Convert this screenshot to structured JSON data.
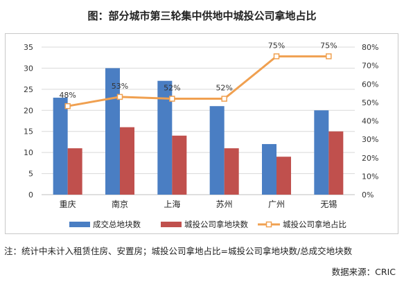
{
  "title": "图：部分城市第三轮集中供地中城投公司拿地占比",
  "note": "注：统计中未计入租赁住房、安置房；城投公司拿地占比=城投公司拿地块数/总成交地块数",
  "source": "数据来源：CRIC",
  "colors": {
    "total": "#4a7ec3",
    "chengtou": "#c0504d",
    "share": "#f0a050",
    "grid": "#d9d9d9"
  },
  "chart_data": {
    "type": "bar",
    "categories": [
      "重庆",
      "南京",
      "上海",
      "苏州",
      "广州",
      "无锡"
    ],
    "series": [
      {
        "name": "成交总地块数",
        "type": "bar",
        "axis": "left",
        "values": [
          23,
          30,
          27,
          21,
          12,
          20
        ]
      },
      {
        "name": "城投公司拿地块数",
        "type": "bar",
        "axis": "left",
        "values": [
          11,
          16,
          14,
          11,
          9,
          15
        ]
      },
      {
        "name": "城投公司拿地占比",
        "type": "line",
        "axis": "right",
        "values": [
          0.48,
          0.53,
          0.52,
          0.52,
          0.75,
          0.75
        ],
        "data_labels": [
          "48%",
          "53%",
          "52%",
          "52%",
          "75%",
          "75%"
        ]
      }
    ],
    "y_left": {
      "min": 0,
      "max": 35,
      "ticks": [
        "0",
        "5",
        "10",
        "15",
        "20",
        "25",
        "30",
        "35"
      ]
    },
    "y_right": {
      "min": 0,
      "max": 0.8,
      "ticks": [
        "0%",
        "10%",
        "20%",
        "30%",
        "40%",
        "50%",
        "60%",
        "70%",
        "80%"
      ]
    },
    "grid": true,
    "legend_position": "bottom"
  }
}
